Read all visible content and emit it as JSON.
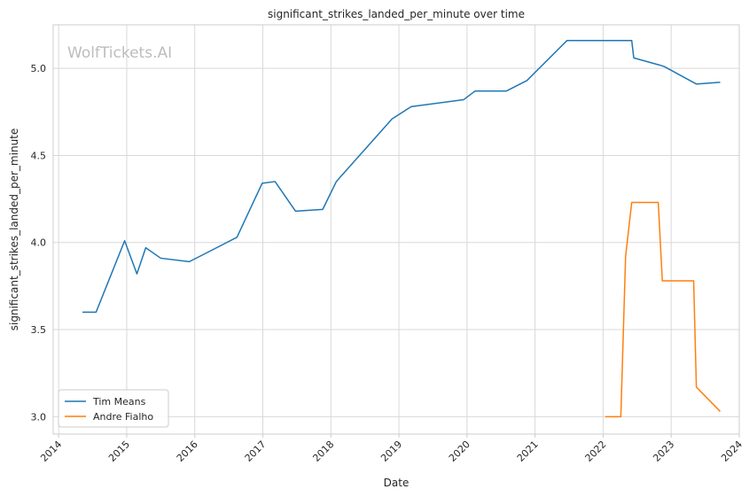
{
  "chart_data": {
    "type": "line",
    "title": "significant_strikes_landed_per_minute over time",
    "xlabel": "Date",
    "ylabel": "significant_strikes_landed_per_minute",
    "watermark": "WolfTickets.AI",
    "xlim": [
      2013.92,
      2024.0
    ],
    "ylim": [
      2.9,
      5.25
    ],
    "x_ticks": [
      {
        "value": 2014,
        "label": "2014"
      },
      {
        "value": 2015,
        "label": "2015"
      },
      {
        "value": 2016,
        "label": "2016"
      },
      {
        "value": 2017,
        "label": "2017"
      },
      {
        "value": 2018,
        "label": "2018"
      },
      {
        "value": 2019,
        "label": "2019"
      },
      {
        "value": 2020,
        "label": "2020"
      },
      {
        "value": 2021,
        "label": "2021"
      },
      {
        "value": 2022,
        "label": "2022"
      },
      {
        "value": 2023,
        "label": "2023"
      },
      {
        "value": 2024,
        "label": "2024"
      }
    ],
    "y_ticks": [
      {
        "value": 3.0,
        "label": "3.0"
      },
      {
        "value": 3.5,
        "label": "3.5"
      },
      {
        "value": 4.0,
        "label": "4.0"
      },
      {
        "value": 4.5,
        "label": "4.5"
      },
      {
        "value": 5.0,
        "label": "5.0"
      }
    ],
    "grid": true,
    "legend_position": "lower-left",
    "series": [
      {
        "name": "Tim Means",
        "color": "#1f77b4",
        "x": [
          2014.35,
          2014.55,
          2014.97,
          2015.15,
          2015.28,
          2015.5,
          2015.92,
          2016.62,
          2016.99,
          2017.18,
          2017.48,
          2017.88,
          2018.08,
          2018.9,
          2019.18,
          2019.95,
          2020.12,
          2020.58,
          2020.88,
          2021.47,
          2022.42,
          2022.45,
          2022.82,
          2022.9,
          2023.37,
          2023.72
        ],
        "y": [
          3.6,
          3.6,
          4.01,
          3.82,
          3.97,
          3.91,
          3.89,
          4.03,
          4.34,
          4.35,
          4.18,
          4.19,
          4.35,
          4.71,
          4.78,
          4.82,
          4.87,
          4.87,
          4.93,
          5.16,
          5.16,
          5.06,
          5.02,
          5.01,
          4.91,
          4.92
        ]
      },
      {
        "name": "Andre Fialho",
        "color": "#ff7f0e",
        "x": [
          2022.03,
          2022.26,
          2022.33,
          2022.42,
          2022.81,
          2022.87,
          2023.33,
          2023.37,
          2023.72
        ],
        "y": [
          3.0,
          3.0,
          3.92,
          4.23,
          4.23,
          3.78,
          3.78,
          3.17,
          3.03
        ]
      }
    ]
  }
}
